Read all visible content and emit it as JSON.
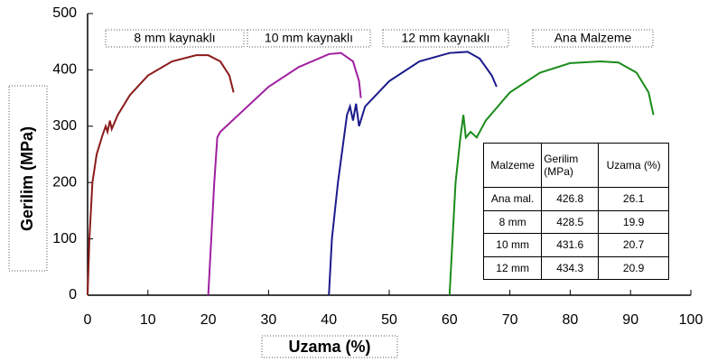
{
  "chart_data": {
    "type": "line",
    "xlabel": "Uzama  (%)",
    "ylabel": "Gerilim  (MPa)",
    "xlim": [
      0,
      100
    ],
    "xticks": [
      0,
      10,
      20,
      30,
      40,
      50,
      60,
      70,
      80,
      90,
      100
    ],
    "ylim": [
      0,
      500
    ],
    "yticks": [
      0,
      100,
      200,
      300,
      400,
      500
    ],
    "series": [
      {
        "name": "8 mm kaynaklı",
        "color": "#8b1a1a",
        "x": [
          0,
          0.3,
          0.8,
          1.5,
          2.5,
          3,
          3.3,
          3.7,
          4,
          5,
          7,
          10,
          14,
          18,
          20,
          22,
          23.5,
          24.2
        ],
        "values": [
          0,
          100,
          200,
          250,
          285,
          300,
          290,
          310,
          295,
          320,
          355,
          390,
          415,
          426,
          426,
          415,
          390,
          360
        ]
      },
      {
        "name": "10 mm kaynaklı",
        "color": "#a020a0",
        "x": [
          20,
          20.5,
          21,
          21.5,
          22,
          25,
          30,
          35,
          40,
          42,
          44,
          45,
          45.3
        ],
        "values": [
          0,
          100,
          200,
          280,
          290,
          320,
          370,
          405,
          428,
          430,
          415,
          380,
          350
        ]
      },
      {
        "name": "12 mm kaynaklı",
        "color": "#1a1a8c",
        "x": [
          40,
          40.5,
          41.5,
          42.5,
          43,
          43.5,
          44,
          44.5,
          45,
          46,
          50,
          55,
          60,
          63,
          65,
          67,
          67.8
        ],
        "values": [
          0,
          100,
          200,
          280,
          320,
          335,
          310,
          340,
          300,
          335,
          380,
          415,
          430,
          432,
          420,
          390,
          370
        ]
      },
      {
        "name": "Ana Malzeme",
        "color": "#1a8c1a",
        "x": [
          60,
          60.5,
          61,
          61.8,
          62.3,
          62.7,
          63.5,
          64.5,
          66,
          70,
          75,
          80,
          85,
          88,
          91,
          93,
          93.8
        ],
        "values": [
          0,
          100,
          200,
          280,
          320,
          280,
          290,
          280,
          310,
          360,
          395,
          412,
          415,
          413,
          395,
          360,
          320
        ]
      }
    ]
  },
  "table": {
    "header": [
      "Malzeme",
      "Gerilim (MPa)",
      "Uzama (%)"
    ],
    "rows": [
      [
        "Ana mal.",
        426.8,
        26.1
      ],
      [
        "8 mm",
        428.5,
        19.9
      ],
      [
        "10 mm",
        431.6,
        20.7
      ],
      [
        "12 mm",
        434.3,
        20.9
      ]
    ]
  }
}
